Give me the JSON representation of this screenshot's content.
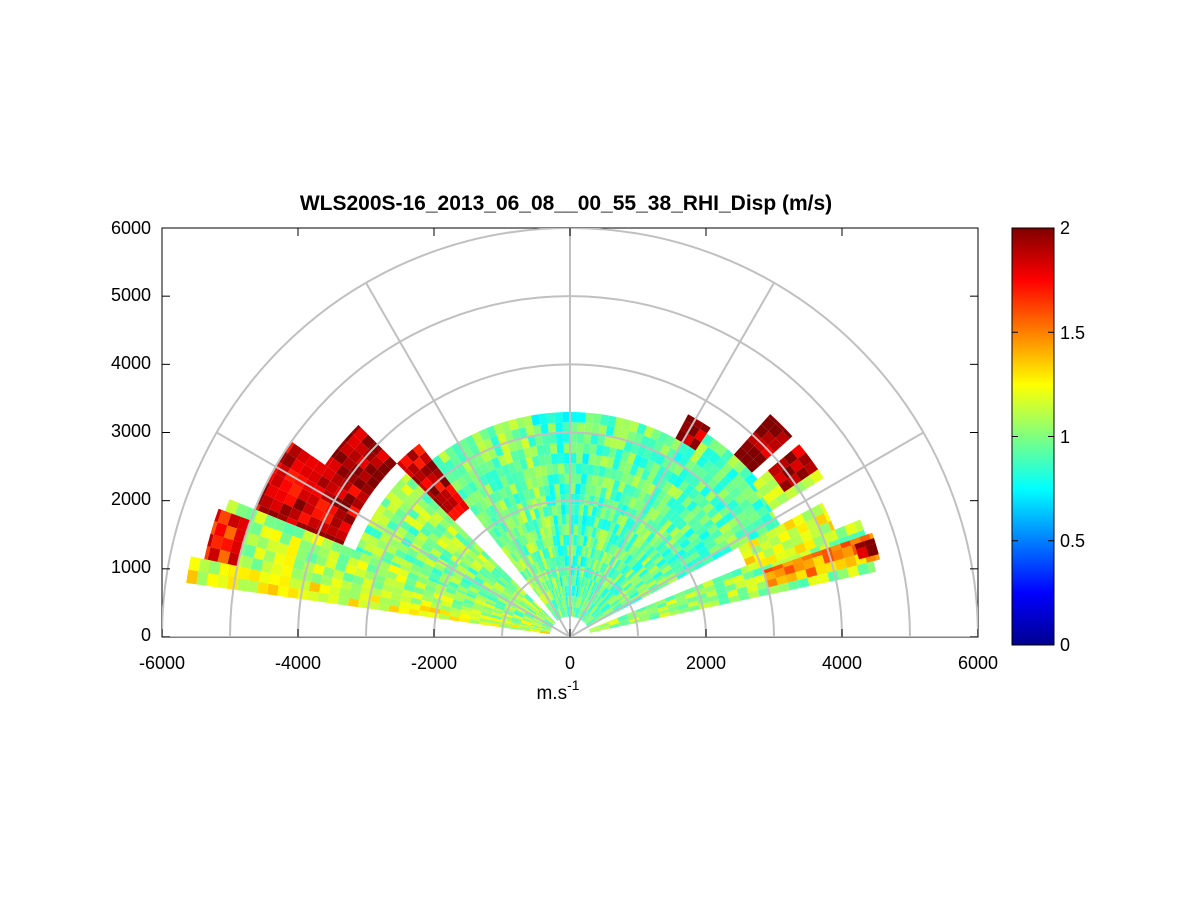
{
  "chart_data": {
    "type": "heatmap",
    "subtype": "polar-rhi",
    "title": "WLS200S-16_2013_06_08__00_55_38_RHI_Disp (m/s)",
    "xlabel": "m.s",
    "xlabel_sup": "-1",
    "ylabel": "",
    "xlim": [
      -6000,
      6000
    ],
    "ylim": [
      0,
      6000
    ],
    "x_ticks": [
      "-6000",
      "-4000",
      "-2000",
      "0",
      "2000",
      "4000",
      "6000"
    ],
    "y_ticks": [
      "0",
      "1000",
      "2000",
      "3000",
      "4000",
      "5000",
      "6000"
    ],
    "polar_rings": [
      1000,
      2000,
      3000,
      4000,
      5000,
      6000
    ],
    "polar_spokes_deg": [
      0,
      30,
      60,
      90,
      120,
      150,
      180
    ],
    "grid": true,
    "colormap": "jet",
    "colorbar": {
      "min": 0,
      "max": 2,
      "ticks": [
        "0",
        "0.5",
        "1",
        "1.5",
        "2"
      ],
      "position": "right"
    },
    "sectors": [
      {
        "az": [
          12,
          22
        ],
        "r": [
          300,
          4600
        ],
        "v": 1.05
      },
      {
        "az": [
          14,
          19
        ],
        "r": [
          3000,
          4700
        ],
        "v": 1.45
      },
      {
        "az": [
          15,
          18
        ],
        "r": [
          4400,
          4700
        ],
        "v": 1.95
      },
      {
        "az": [
          20,
          28
        ],
        "r": [
          2800,
          4200
        ],
        "v": 1.2
      },
      {
        "az": [
          28,
          40
        ],
        "r": [
          300,
          3500
        ],
        "v": 0.95
      },
      {
        "az": [
          32,
          40
        ],
        "r": [
          3500,
          4400
        ],
        "v": 1.2
      },
      {
        "az": [
          34,
          40
        ],
        "r": [
          3800,
          4400
        ],
        "v": 1.9
      },
      {
        "az": [
          40,
          50
        ],
        "r": [
          300,
          3600
        ],
        "v": 0.95
      },
      {
        "az": [
          42,
          48
        ],
        "r": [
          3600,
          4400
        ],
        "v": 1.95
      },
      {
        "az": [
          50,
          62
        ],
        "r": [
          300,
          3600
        ],
        "v": 0.95
      },
      {
        "az": [
          56,
          62
        ],
        "r": [
          3300,
          3700
        ],
        "v": 1.9
      },
      {
        "az": [
          62,
          80
        ],
        "r": [
          300,
          3300
        ],
        "v": 0.95
      },
      {
        "az": [
          80,
          100
        ],
        "r": [
          300,
          3300
        ],
        "v": 0.9
      },
      {
        "az": [
          100,
          118
        ],
        "r": [
          300,
          3300
        ],
        "v": 1.0
      },
      {
        "az": [
          118,
          128
        ],
        "r": [
          300,
          3300
        ],
        "v": 1.0
      },
      {
        "az": [
          128,
          135
        ],
        "r": [
          2400,
          3600
        ],
        "v": 1.85
      },
      {
        "az": [
          135,
          145
        ],
        "r": [
          300,
          3400
        ],
        "v": 1.05
      },
      {
        "az": [
          135,
          145
        ],
        "r": [
          3600,
          4400
        ],
        "v": 1.95
      },
      {
        "az": [
          145,
          158
        ],
        "r": [
          300,
          3400
        ],
        "v": 1.0
      },
      {
        "az": [
          145,
          158
        ],
        "r": [
          3600,
          5000
        ],
        "v": 1.85
      },
      {
        "az": [
          158,
          170
        ],
        "r": [
          300,
          5400
        ],
        "v": 1.1
      },
      {
        "az": [
          160,
          170
        ],
        "r": [
          5000,
          5500
        ],
        "v": 1.7
      },
      {
        "az": [
          168,
          172
        ],
        "r": [
          300,
          5700
        ],
        "v": 1.2
      }
    ]
  }
}
